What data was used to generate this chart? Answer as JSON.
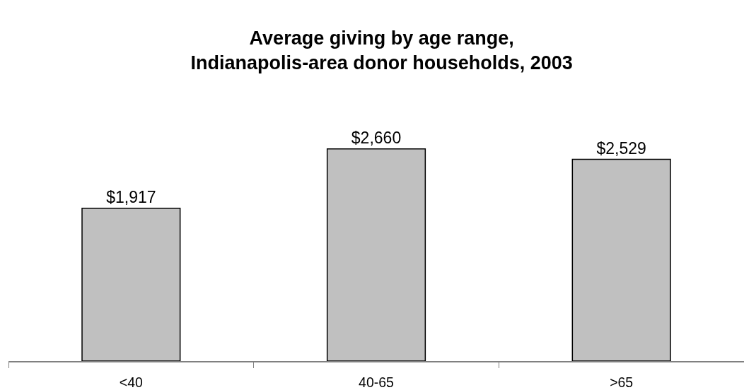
{
  "chart_data": {
    "type": "bar",
    "title": "Average giving by age range,\nIndianapolis-area donor households, 2003",
    "categories": [
      "<40",
      "40-65",
      ">65"
    ],
    "values": [
      1917,
      2660,
      2529
    ],
    "value_labels": [
      "$1,917",
      "$2,660",
      "$2,529"
    ],
    "color": "#c0c0c0",
    "tick_labels": "x"
  }
}
